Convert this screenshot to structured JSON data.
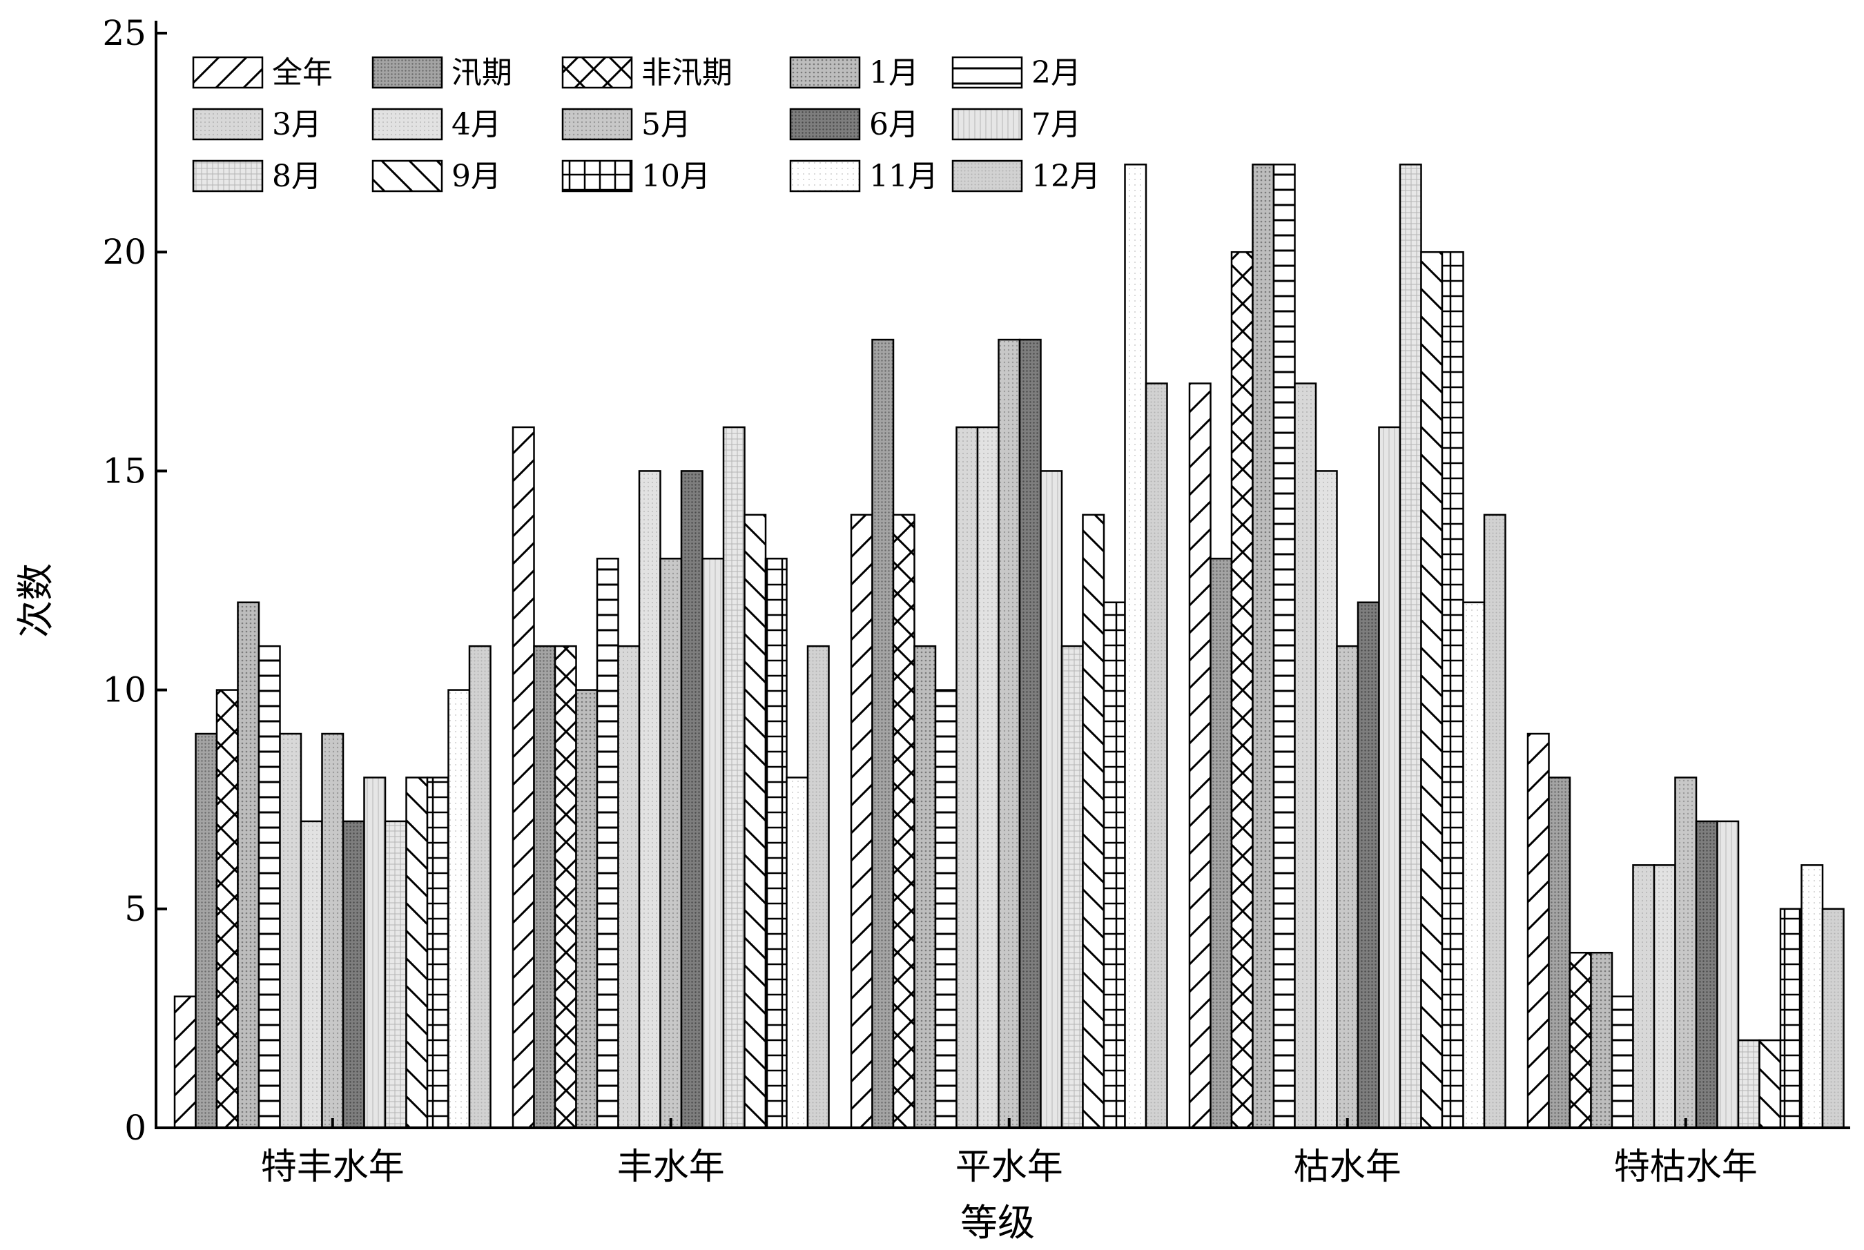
{
  "chart_data": {
    "type": "bar",
    "xlabel": "等级",
    "ylabel": "次数",
    "ylim": [
      0,
      25
    ],
    "yticks": [
      0,
      5,
      10,
      15,
      20,
      25
    ],
    "grid": false,
    "legend_position": "top-left",
    "categories": [
      "特丰水年",
      "丰水年",
      "平水年",
      "枯水年",
      "特枯水年"
    ],
    "series": [
      {
        "name": "全年",
        "pattern": "diag-up",
        "values": [
          3,
          16,
          14,
          17,
          9
        ]
      },
      {
        "name": "汛期",
        "pattern": "dense-dark",
        "values": [
          9,
          11,
          18,
          13,
          8
        ]
      },
      {
        "name": "非汛期",
        "pattern": "cross-diag",
        "values": [
          10,
          11,
          14,
          20,
          4
        ]
      },
      {
        "name": "1月",
        "pattern": "dots-medium",
        "values": [
          12,
          10,
          11,
          22,
          4
        ]
      },
      {
        "name": "2月",
        "pattern": "horiz",
        "values": [
          11,
          13,
          10,
          22,
          3
        ]
      },
      {
        "name": "3月",
        "pattern": "light-grid",
        "values": [
          9,
          11,
          16,
          17,
          6
        ]
      },
      {
        "name": "4月",
        "pattern": "light-dots",
        "values": [
          7,
          15,
          16,
          15,
          6
        ]
      },
      {
        "name": "5月",
        "pattern": "medium-dots",
        "values": [
          9,
          13,
          18,
          11,
          8
        ]
      },
      {
        "name": "6月",
        "pattern": "dark-dense",
        "values": [
          7,
          15,
          18,
          12,
          7
        ]
      },
      {
        "name": "7月",
        "pattern": "vert-fine",
        "values": [
          8,
          13,
          15,
          16,
          7
        ]
      },
      {
        "name": "8月",
        "pattern": "fine-grid",
        "values": [
          7,
          16,
          11,
          22,
          2
        ]
      },
      {
        "name": "9月",
        "pattern": "diag-down",
        "values": [
          8,
          14,
          14,
          20,
          2
        ]
      },
      {
        "name": "10月",
        "pattern": "vert-grid",
        "values": [
          8,
          13,
          12,
          20,
          5
        ]
      },
      {
        "name": "11月",
        "pattern": "sparse-dots",
        "values": [
          10,
          8,
          22,
          12,
          6
        ]
      },
      {
        "name": "12月",
        "pattern": "light-fine",
        "values": [
          11,
          11,
          17,
          14,
          5
        ]
      }
    ]
  }
}
